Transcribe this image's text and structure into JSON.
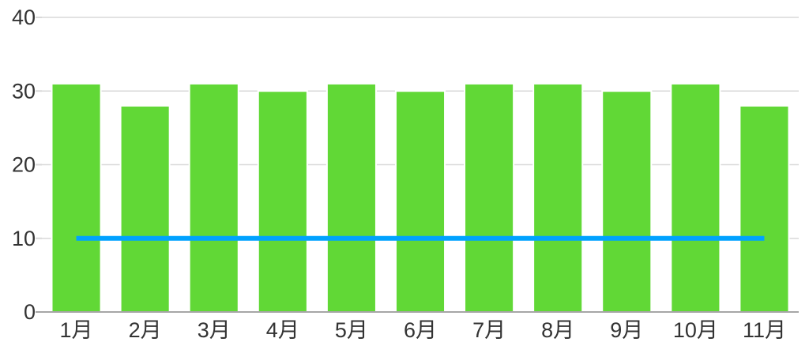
{
  "canvas": {
    "background": "#FFFFFF"
  },
  "chart_data": {
    "type": "bar",
    "title": "",
    "xlabel": "",
    "ylabel": "",
    "categories": [
      "1月",
      "2月",
      "3月",
      "4月",
      "5月",
      "6月",
      "7月",
      "8月",
      "9月",
      "10月",
      "11月"
    ],
    "series": [
      {
        "name": "monthly-bars",
        "type": "bar",
        "color": "#61D836",
        "values": [
          31,
          28,
          31,
          30,
          31,
          30,
          31,
          31,
          30,
          31,
          28
        ]
      },
      {
        "name": "constant-line",
        "type": "line",
        "color": "#00A2FF",
        "values": [
          10,
          10,
          10,
          10,
          10,
          10,
          10,
          10,
          10,
          10,
          10
        ]
      }
    ],
    "ylim": [
      0,
      40
    ],
    "y_ticks": [
      0,
      10,
      20,
      30,
      40
    ],
    "y_tick_labels": [
      "0",
      "10",
      "20",
      "30",
      "40"
    ],
    "grid": true,
    "legend": false,
    "colors": {
      "grid": "#D9D9D9",
      "axis": "#A6A6A6",
      "text": "#333333"
    }
  }
}
